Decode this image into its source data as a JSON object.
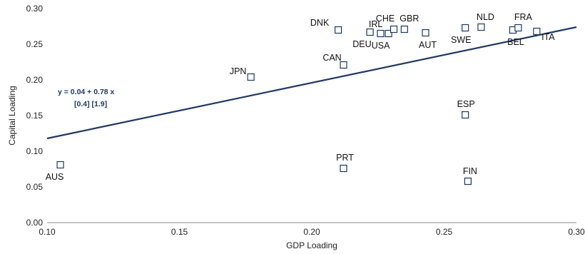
{
  "chart_data": {
    "type": "scatter",
    "xlabel": "GDP Loading",
    "ylabel": "Capital Loading",
    "xlim": [
      0.1,
      0.3
    ],
    "ylim": [
      0.0,
      0.3
    ],
    "xticks": [
      "0.10",
      "0.15",
      "0.20",
      "0.25",
      "0.30"
    ],
    "yticks": [
      "0.00",
      "0.05",
      "0.10",
      "0.15",
      "0.20",
      "0.25",
      "0.30"
    ],
    "grid": false,
    "marker_color": "#1f3864",
    "line_color": "#1f3864",
    "fit": {
      "intercept": 0.04,
      "slope": 0.78,
      "equation": "y =  0.04 + 0.78 x",
      "tstats": "[0.4]    [1.9]"
    },
    "points": [
      {
        "label": "AUS",
        "x": 0.105,
        "y": 0.081
      },
      {
        "label": "JPN",
        "x": 0.177,
        "y": 0.204
      },
      {
        "label": "DNK",
        "x": 0.21,
        "y": 0.27
      },
      {
        "label": "IRL",
        "x": 0.222,
        "y": 0.267
      },
      {
        "label": "CAN",
        "x": 0.212,
        "y": 0.221
      },
      {
        "label": "PRT",
        "x": 0.212,
        "y": 0.076
      },
      {
        "label": "DEU",
        "x": 0.226,
        "y": 0.265
      },
      {
        "label": "USA",
        "x": 0.229,
        "y": 0.265
      },
      {
        "label": "CHE",
        "x": 0.231,
        "y": 0.271
      },
      {
        "label": "GBR",
        "x": 0.235,
        "y": 0.271
      },
      {
        "label": "AUT",
        "x": 0.243,
        "y": 0.266
      },
      {
        "label": "SWE",
        "x": 0.258,
        "y": 0.273
      },
      {
        "label": "ESP",
        "x": 0.258,
        "y": 0.151
      },
      {
        "label": "FIN",
        "x": 0.259,
        "y": 0.058
      },
      {
        "label": "NLD",
        "x": 0.264,
        "y": 0.274
      },
      {
        "label": "BEL",
        "x": 0.276,
        "y": 0.27
      },
      {
        "label": "FRA",
        "x": 0.278,
        "y": 0.273
      },
      {
        "label": "ITA",
        "x": 0.285,
        "y": 0.268
      }
    ]
  }
}
